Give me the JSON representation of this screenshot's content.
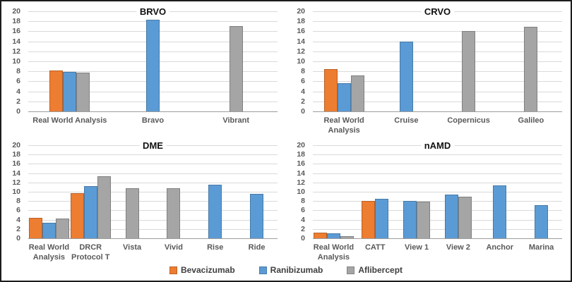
{
  "figure": {
    "background": "#ffffff",
    "border_color": "#1c1c1c",
    "gridline_color": "#d9d9d9",
    "axis_text_color": "#595959"
  },
  "legend": {
    "items": [
      {
        "label": "Bevacizumab",
        "color": "#ED7D31"
      },
      {
        "label": "Ranibizumab",
        "color": "#5B9BD5"
      },
      {
        "label": "Aflibercept",
        "color": "#A5A5A5"
      }
    ]
  },
  "chart_data": [
    {
      "type": "bar",
      "title": "BRVO",
      "ylim": [
        0,
        20
      ],
      "ytick_step": 2,
      "grid": true,
      "legend_position": "shared-bottom",
      "categories": [
        "Real World Analysis",
        "Bravo",
        "Vibrant"
      ],
      "series": [
        {
          "name": "Bevacizumab",
          "color": "#ED7D31",
          "values": [
            8.2,
            null,
            null
          ]
        },
        {
          "name": "Ranibizumab",
          "color": "#5B9BD5",
          "values": [
            7.9,
            18.3,
            null
          ]
        },
        {
          "name": "Aflibercept",
          "color": "#A5A5A5",
          "values": [
            7.8,
            null,
            17.1
          ]
        }
      ]
    },
    {
      "type": "bar",
      "title": "CRVO",
      "ylim": [
        0,
        20
      ],
      "ytick_step": 2,
      "grid": true,
      "legend_position": "shared-bottom",
      "categories": [
        "Real World Analysis",
        "Cruise",
        "Copernicus",
        "Galileo"
      ],
      "series": [
        {
          "name": "Bevacizumab",
          "color": "#ED7D31",
          "values": [
            8.4,
            null,
            null,
            null
          ]
        },
        {
          "name": "Ranibizumab",
          "color": "#5B9BD5",
          "values": [
            5.6,
            13.9,
            null,
            null
          ]
        },
        {
          "name": "Aflibercept",
          "color": "#A5A5A5",
          "values": [
            7.2,
            null,
            16.1,
            16.9
          ]
        }
      ]
    },
    {
      "type": "bar",
      "title": "DME",
      "ylim": [
        0,
        20
      ],
      "ytick_step": 2,
      "grid": true,
      "legend_position": "shared-bottom",
      "categories": [
        "Real World Analysis",
        "DRCR Protocol T",
        "Vista",
        "Vivid",
        "Rise",
        "Ride"
      ],
      "series": [
        {
          "name": "Bevacizumab",
          "color": "#ED7D31",
          "values": [
            4.4,
            9.7,
            null,
            null,
            null,
            null
          ]
        },
        {
          "name": "Ranibizumab",
          "color": "#5B9BD5",
          "values": [
            3.4,
            11.2,
            null,
            null,
            11.5,
            9.5
          ]
        },
        {
          "name": "Aflibercept",
          "color": "#A5A5A5",
          "values": [
            4.2,
            13.3,
            10.7,
            10.7,
            null,
            null
          ]
        }
      ]
    },
    {
      "type": "bar",
      "title": "nAMD",
      "ylim": [
        0,
        20
      ],
      "ytick_step": 2,
      "grid": true,
      "legend_position": "shared-bottom",
      "categories": [
        "Real World Analysis",
        "CATT",
        "View 1",
        "View 2",
        "Anchor",
        "Marina"
      ],
      "series": [
        {
          "name": "Bevacizumab",
          "color": "#ED7D31",
          "values": [
            1.2,
            8.0,
            null,
            null,
            null,
            null
          ]
        },
        {
          "name": "Ranibizumab",
          "color": "#5B9BD5",
          "values": [
            1.1,
            8.5,
            8.1,
            9.4,
            11.3,
            7.1
          ]
        },
        {
          "name": "Aflibercept",
          "color": "#A5A5A5",
          "values": [
            0.4,
            null,
            7.9,
            8.9,
            null,
            null
          ]
        }
      ]
    }
  ]
}
